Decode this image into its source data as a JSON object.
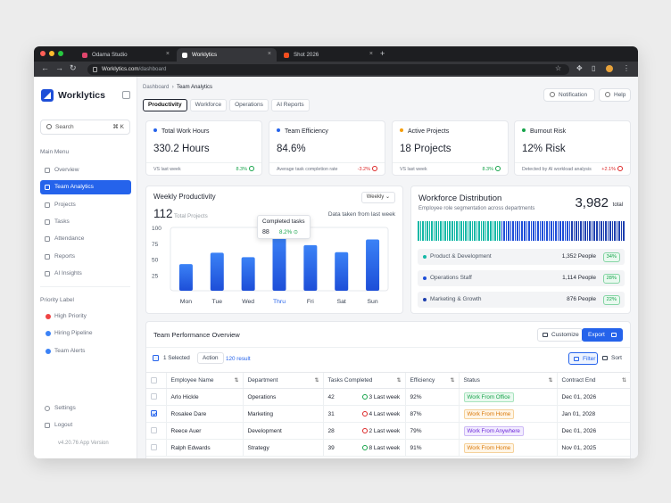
{
  "browser": {
    "tabs": [
      {
        "label": "Odama Studio",
        "favicon_color": "#e0466c"
      },
      {
        "label": "Worklytics",
        "favicon_color": "#ffffff"
      },
      {
        "label": "Shot 2026",
        "favicon_color": "#f24e1e"
      }
    ],
    "url_host": "Worklytics.com",
    "url_path": "/dashboard"
  },
  "sidebar": {
    "brand": "Worklytics",
    "search_placeholder": "Search",
    "search_shortcut": "⌘ K",
    "main_menu_label": "Main Menu",
    "items": [
      {
        "label": "Overview",
        "icon": "grid-icon"
      },
      {
        "label": "Team Analytics",
        "icon": "chart-icon",
        "active": true
      },
      {
        "label": "Projects",
        "icon": "folder-icon"
      },
      {
        "label": "Tasks",
        "icon": "checklist-icon"
      },
      {
        "label": "Attendance",
        "icon": "calendar-icon"
      },
      {
        "label": "Reports",
        "icon": "report-icon"
      },
      {
        "label": "AI Insights",
        "icon": "sparkle-icon"
      }
    ],
    "priority_label": "Priority Label",
    "priority": [
      {
        "label": "High Priority",
        "color": "#ef4444"
      },
      {
        "label": "Hiring Pipeline",
        "color": "#3b82f6"
      },
      {
        "label": "Team Alerts",
        "color": "#3b82f6"
      }
    ],
    "settings": "Settings",
    "logout": "Logout",
    "version": "v4.20.76 App Version"
  },
  "header": {
    "breadcrumb_root": "Dashboard",
    "breadcrumb_current": "Team Analytics",
    "tabs": [
      "Productivity",
      "Workforce",
      "Operations",
      "AI Reports"
    ],
    "notification": "Notification",
    "help": "Help"
  },
  "kpis": [
    {
      "label": "Total Work Hours",
      "value": "330.2 Hours",
      "sub": "VS last week",
      "change": "8.3%",
      "dir": "up",
      "dot": "#2563eb"
    },
    {
      "label": "Team Efficiency",
      "value": "84.6%",
      "sub": "Average task completion rate",
      "change": "-3.2%",
      "dir": "down",
      "dot": "#2563eb"
    },
    {
      "label": "Active Projects",
      "value": "18 Projects",
      "sub": "VS last week",
      "change": "8.3%",
      "dir": "up",
      "dot": "#f59e0b"
    },
    {
      "label": "Burnout Risk",
      "value": "12% Risk",
      "sub": "Detected by AI workload analysis",
      "change": "+2.1%",
      "dir": "down",
      "dot": "#16a34a"
    }
  ],
  "weekly": {
    "title": "Weekly Productivity",
    "period": "Weekly",
    "total": "112",
    "total_label": "Total Projects",
    "note": "Data taken from last week",
    "tooltip_title": "Completed tasks",
    "tooltip_value": "88",
    "tooltip_change": "8.2%"
  },
  "chart_data": {
    "type": "bar",
    "categories": [
      "Mon",
      "Tue",
      "Wed",
      "Thru",
      "Fri",
      "Sat",
      "Sun"
    ],
    "values": [
      42,
      60,
      53,
      88,
      72,
      61,
      81
    ],
    "yticks": [
      100,
      75,
      50,
      25
    ],
    "ylim": [
      0,
      100
    ],
    "highlight": "Thru",
    "grid": false
  },
  "workforce": {
    "title": "Workforce Distribution",
    "subtitle": "Employee role segmentation across departments",
    "total": "3,982",
    "total_label": "total",
    "departments": [
      {
        "name": "Product & Development",
        "people": "1,352 People",
        "pct": "34%",
        "color": "#14b8a6"
      },
      {
        "name": "Operations Staff",
        "people": "1,114 People",
        "pct": "28%",
        "color": "#1d4ed8"
      },
      {
        "name": "Marketing & Growth",
        "people": "876 People",
        "pct": "22%",
        "color": "#1e40af"
      }
    ]
  },
  "performance": {
    "title": "Team Performance Overview",
    "customize": "Customize",
    "export": "Export",
    "selected": "1 Selected",
    "action": "Action",
    "result": "120 result",
    "filter": "Filter",
    "sort": "Sort",
    "columns": [
      "Employee Name",
      "Department",
      "Tasks Completed",
      "Efficiency",
      "Status",
      "Contract End"
    ],
    "rows": [
      {
        "name": "Arlo Hickle",
        "dept": "Operations",
        "tasks": "42",
        "trend": "3 Last week",
        "dir": "up",
        "eff": "92%",
        "status": "Work From Office",
        "status_color": "#16a34a",
        "status_bg": "#e9f9ef",
        "status_border": "#a7e3bd",
        "end": "Dec 01, 2026",
        "checked": false
      },
      {
        "name": "Rosalee Dare",
        "dept": "Marketing",
        "tasks": "31",
        "trend": "4 Last week",
        "dir": "down",
        "eff": "87%",
        "status": "Work From Home",
        "status_color": "#d97706",
        "status_bg": "#fff5e6",
        "status_border": "#f5d19a",
        "end": "Jan 01, 2028",
        "checked": true
      },
      {
        "name": "Reece Auer",
        "dept": "Development",
        "tasks": "28",
        "trend": "2 Last week",
        "dir": "down",
        "eff": "79%",
        "status": "Work From Anywhere",
        "status_color": "#6d28d9",
        "status_bg": "#f2ecff",
        "status_border": "#cdb9f5",
        "end": "Dec 01, 2026",
        "checked": false
      },
      {
        "name": "Ralph Edwards",
        "dept": "Strategy",
        "tasks": "39",
        "trend": "8 Last week",
        "dir": "up",
        "eff": "91%",
        "status": "Work From Home",
        "status_color": "#d97706",
        "status_bg": "#fff5e6",
        "status_border": "#f5d19a",
        "end": "Nov 01, 2025",
        "checked": false
      }
    ]
  }
}
